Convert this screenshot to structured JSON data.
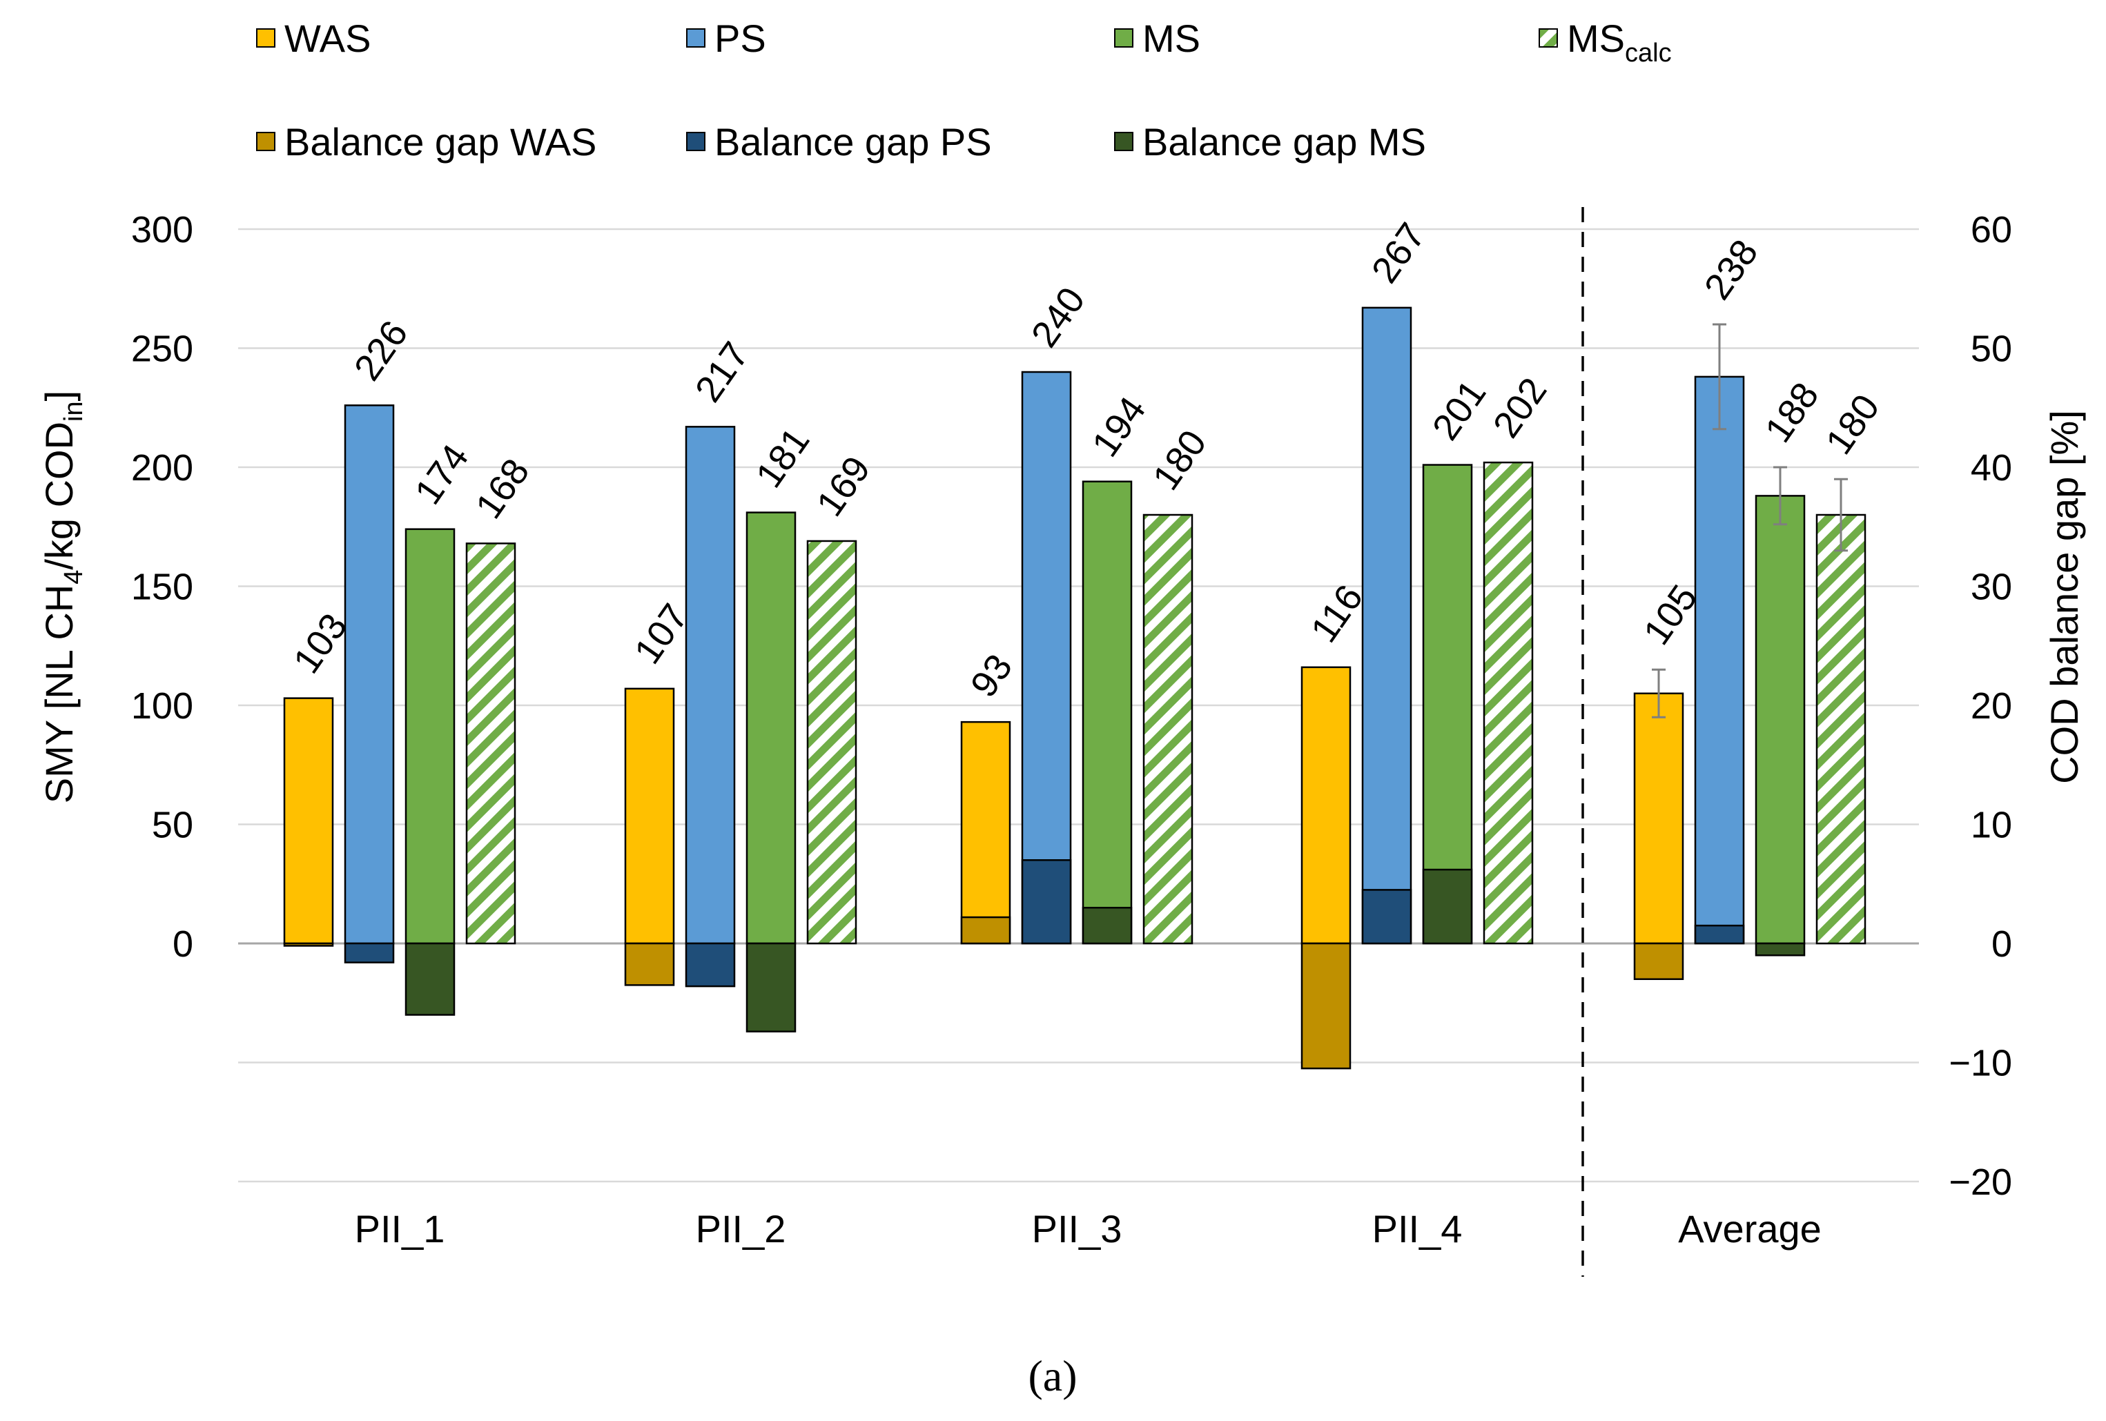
{
  "chart_data": {
    "type": "bar",
    "categories": [
      "PII_1",
      "PII_2",
      "PII_3",
      "PII_4",
      "Average"
    ],
    "primary_axis": {
      "label_main": "SMY [NL CH",
      "label_sub1": "4",
      "label_mid": "/kg COD",
      "label_sub2": "in",
      "label_end": "]",
      "ylim": [
        -100,
        300
      ],
      "ticks": [
        0,
        50,
        100,
        150,
        200,
        250,
        300
      ]
    },
    "secondary_axis": {
      "label": "COD balance gap [%]",
      "ylim": [
        -20,
        60
      ],
      "ticks": [
        -20,
        -10,
        0,
        10,
        20,
        30,
        40,
        50,
        60
      ]
    },
    "series": [
      {
        "key": "WAS",
        "name": "WAS",
        "axis": "primary",
        "color": "#FFC000",
        "pattern": "solid",
        "values": [
          103,
          107,
          93,
          116,
          105
        ],
        "labels": [
          "103",
          "107",
          "93",
          "116",
          "105"
        ],
        "error": [
          null,
          null,
          null,
          null,
          10
        ]
      },
      {
        "key": "PS",
        "name": "PS",
        "axis": "primary",
        "color": "#5B9BD5",
        "pattern": "solid",
        "values": [
          226,
          217,
          240,
          267,
          238
        ],
        "labels": [
          "226",
          "217",
          "240",
          "267",
          "238"
        ],
        "error": [
          null,
          null,
          null,
          null,
          22
        ]
      },
      {
        "key": "MS",
        "name": "MS",
        "axis": "primary",
        "color": "#70AD47",
        "pattern": "solid",
        "values": [
          174,
          181,
          194,
          201,
          188
        ],
        "labels": [
          "174",
          "181",
          "194",
          "201",
          "188"
        ],
        "error": [
          null,
          null,
          null,
          null,
          12
        ]
      },
      {
        "key": "MScalc",
        "name": "MS",
        "name_sub": "calc",
        "axis": "primary",
        "color": "#70AD47",
        "pattern": "hatch",
        "values": [
          168,
          169,
          180,
          202,
          180
        ],
        "labels": [
          "168",
          "169",
          "180",
          "202",
          "180"
        ],
        "error": [
          null,
          null,
          null,
          null,
          15
        ]
      },
      {
        "key": "gapWAS",
        "name": "Balance gap WAS",
        "axis": "secondary",
        "color": "#BF9000",
        "pattern": "solid",
        "values": [
          -0.2,
          -3.5,
          2.2,
          -10.5,
          -3.0
        ]
      },
      {
        "key": "gapPS",
        "name": "Balance gap PS",
        "axis": "secondary",
        "color": "#1F4E79",
        "pattern": "solid",
        "values": [
          -1.6,
          -3.6,
          7.0,
          4.5,
          1.5
        ]
      },
      {
        "key": "gapMS",
        "name": "Balance gap MS",
        "axis": "secondary",
        "color": "#375623",
        "pattern": "solid",
        "values": [
          -6.0,
          -7.4,
          3.0,
          6.2,
          -1.0
        ]
      }
    ],
    "legend_position": "top",
    "grid": true,
    "separator_before": "Average",
    "caption": "(a)"
  }
}
